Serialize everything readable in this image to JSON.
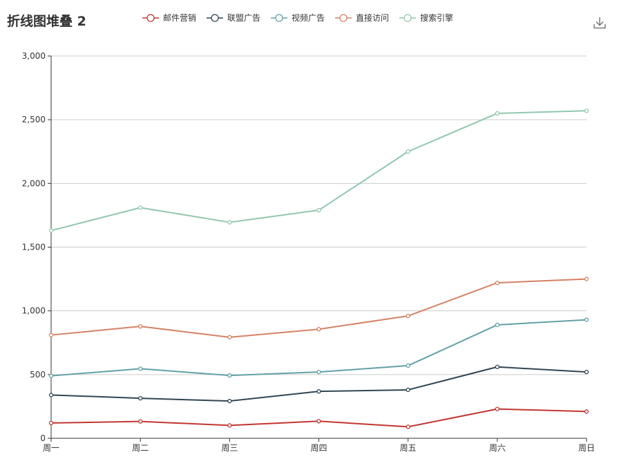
{
  "chart_data": {
    "type": "line",
    "title": "折线图堆叠 2",
    "categories": [
      "周一",
      "周二",
      "周三",
      "周四",
      "周五",
      "周六",
      "周日"
    ],
    "series": [
      {
        "name": "邮件营销",
        "color": "#c23531",
        "values": [
          120,
          132,
          101,
          134,
          90,
          230,
          210
        ]
      },
      {
        "name": "联盟广告",
        "color": "#2f4554",
        "values": [
          340,
          314,
          292,
          368,
          380,
          560,
          520
        ]
      },
      {
        "name": "视频广告",
        "color": "#61a0a8",
        "values": [
          490,
          546,
          493,
          520,
          570,
          890,
          930
        ]
      },
      {
        "name": "直接访问",
        "color": "#d48265",
        "values": [
          810,
          878,
          793,
          856,
          960,
          1220,
          1250
        ]
      },
      {
        "name": "搜索引擎",
        "color": "#91c7ae",
        "values": [
          1630,
          1810,
          1695,
          1790,
          2250,
          2550,
          2570
        ]
      }
    ],
    "y_ticks": [
      "0",
      "500",
      "1,000",
      "1,500",
      "2,000",
      "2,500",
      "3,000"
    ],
    "ylim": [
      0,
      3000
    ],
    "grid": "horizontal",
    "legend_position": "top-center"
  },
  "toolbar": {
    "download_icon": "download-icon"
  }
}
